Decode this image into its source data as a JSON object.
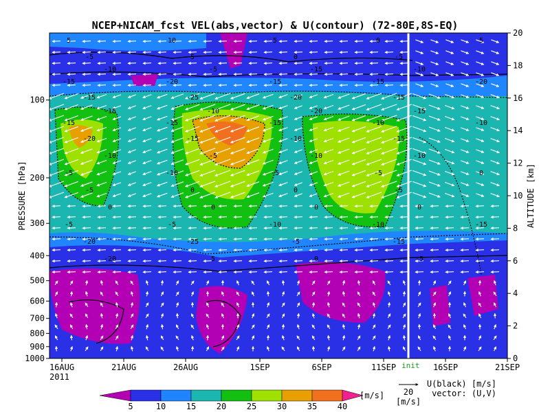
{
  "chart_data": {
    "type": "heatmap",
    "title": "NCEP+NICAM_fcst VEL(abs,vector) & U(contour)  (72-80E,8S-EQ)",
    "ylabel": "PRESSURE [hPa]",
    "y2label": "ALTITUDE [km]",
    "y_scale": "log",
    "ylim": [
      1000,
      55
    ],
    "y_ticks": [
      100,
      200,
      300,
      400,
      500,
      600,
      700,
      800,
      900,
      1000
    ],
    "y_tick_labels": [
      "100",
      "200",
      "300",
      "400",
      "500",
      "600",
      "700",
      "800",
      "900",
      "1000"
    ],
    "y2_ticks": [
      0,
      2,
      4,
      6,
      8,
      10,
      12,
      14,
      16,
      18,
      20
    ],
    "y2_tick_labels": [
      "0",
      "2",
      "4",
      "6",
      "8",
      "10",
      "12",
      "14",
      "16",
      "18",
      "20"
    ],
    "xlim": [
      "2011-08-15",
      "2011-09-21"
    ],
    "x_ticks": [
      "2011-08-16",
      "2011-08-21",
      "2011-08-26",
      "2011-09-01",
      "2011-09-06",
      "2011-09-11",
      "2011-09-16",
      "2011-09-21"
    ],
    "x_tick_labels": [
      "16AUG",
      "21AUG",
      "26AUG",
      "1SEP",
      "6SEP",
      "11SEP",
      "16SEP",
      "21SEP"
    ],
    "x_year_label": "2011",
    "init_date": "2011-09-13",
    "init_label": "init",
    "colorbar": {
      "levels": [
        "5",
        "10",
        "15",
        "20",
        "25",
        "30",
        "35",
        "40"
      ],
      "unit": "[m/s]",
      "colors": [
        "#b400b4",
        "#2a30e6",
        "#1f86ff",
        "#1bb6b0",
        "#12c012",
        "#9ee000",
        "#e8a000",
        "#f07020",
        "#f02090"
      ]
    },
    "vector_legend": {
      "value": "20",
      "unit": "[m/s]"
    },
    "contour_legend": [
      "U(black) [m/s]",
      "vector: (U,V)"
    ],
    "contour_labels": [
      "5",
      "10",
      "5",
      "0",
      "5",
      "-5",
      "5",
      "0",
      "-5",
      "-10",
      "-5",
      "-15",
      "-10",
      "-15",
      "-20",
      "-15",
      "-15",
      "-20",
      "-15",
      "-25",
      "-20",
      "-15",
      "-15",
      "-10",
      "-20",
      "-15",
      "-15",
      "-15",
      "-15",
      "-10",
      "-10",
      "-20",
      "-15",
      "-10",
      "-15",
      "-10",
      "-5",
      "-10",
      "-10",
      "-5",
      "-10",
      "-5",
      "-5",
      "0",
      "-5",
      "0",
      "0",
      "-5",
      "0",
      "0",
      "0",
      "0",
      "-5",
      "-5",
      "-10",
      "-10",
      "-15",
      "-20",
      "-25",
      "-5",
      "-15",
      "-20",
      "5",
      "0",
      "-5"
    ]
  }
}
